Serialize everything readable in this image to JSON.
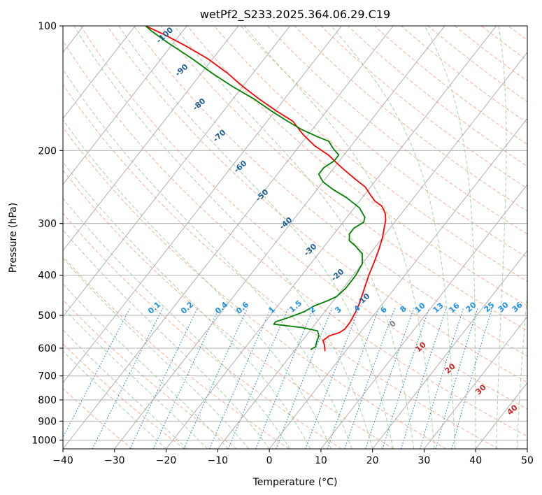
{
  "chart_data": {
    "type": "line",
    "title": "wetPf2_S233.2025.364.06.29.C19",
    "xlabel": "Temperature (°C)",
    "ylabel": "Pressure (hPa)",
    "xlim": [
      -40,
      50
    ],
    "ylim": [
      1050,
      100
    ],
    "y_scale": "log",
    "grid": true,
    "x_ticks": [
      -40,
      -30,
      -20,
      -10,
      0,
      10,
      20,
      30,
      40,
      50
    ],
    "y_ticks": [
      100,
      200,
      300,
      400,
      500,
      600,
      700,
      800,
      900,
      1000
    ],
    "series": [
      {
        "role": "temperature",
        "color": "#ff0000",
        "points": [
          [
            -4,
            610
          ],
          [
            -5,
            590
          ],
          [
            -6,
            575
          ],
          [
            -5.5,
            560
          ],
          [
            -4,
            550
          ],
          [
            -3.5,
            540
          ],
          [
            -3.5,
            520
          ],
          [
            -4,
            490
          ],
          [
            -4.5,
            470
          ],
          [
            -5.5,
            440
          ],
          [
            -7,
            400
          ],
          [
            -8,
            370
          ],
          [
            -9,
            345
          ],
          [
            -10,
            325
          ],
          [
            -11,
            310
          ],
          [
            -12,
            295
          ],
          [
            -13,
            285
          ],
          [
            -14,
            278
          ],
          [
            -15,
            272
          ],
          [
            -17,
            265
          ],
          [
            -19,
            255
          ],
          [
            -21,
            245
          ],
          [
            -24,
            235
          ],
          [
            -27,
            225
          ],
          [
            -30,
            215
          ],
          [
            -33,
            205
          ],
          [
            -37,
            195
          ],
          [
            -41,
            183
          ],
          [
            -45,
            170
          ],
          [
            -50,
            160
          ],
          [
            -55,
            150
          ],
          [
            -60,
            140
          ],
          [
            -65,
            130
          ],
          [
            -71,
            120
          ],
          [
            -77,
            112
          ],
          [
            -83,
            105
          ],
          [
            -88,
            100
          ]
        ]
      },
      {
        "role": "dewpoint",
        "color": "#008000",
        "points": [
          [
            -7,
            605
          ],
          [
            -6.5,
            595
          ],
          [
            -7,
            580
          ],
          [
            -7.5,
            560
          ],
          [
            -8.5,
            545
          ],
          [
            -12,
            535
          ],
          [
            -18,
            525
          ],
          [
            -18,
            518
          ],
          [
            -16,
            505
          ],
          [
            -14,
            490
          ],
          [
            -13,
            475
          ],
          [
            -11,
            460
          ],
          [
            -10,
            450
          ],
          [
            -9.5,
            430
          ],
          [
            -9.5,
            400
          ],
          [
            -10,
            375
          ],
          [
            -11.5,
            355
          ],
          [
            -14,
            340
          ],
          [
            -16,
            330
          ],
          [
            -17,
            318
          ],
          [
            -17,
            308
          ],
          [
            -16,
            298
          ],
          [
            -16.5,
            290
          ],
          [
            -19,
            275
          ],
          [
            -23,
            260
          ],
          [
            -27,
            248
          ],
          [
            -30,
            238
          ],
          [
            -32,
            228
          ],
          [
            -32,
            220
          ],
          [
            -31,
            212
          ],
          [
            -31,
            205
          ],
          [
            -33,
            198
          ],
          [
            -35,
            190
          ],
          [
            -38,
            185
          ],
          [
            -42,
            178
          ],
          [
            -46,
            170
          ],
          [
            -51,
            160
          ],
          [
            -56,
            150
          ],
          [
            -62,
            140
          ],
          [
            -68,
            130
          ],
          [
            -74,
            120
          ],
          [
            -81,
            110
          ],
          [
            -86,
            103
          ],
          [
            -88,
            100
          ]
        ]
      }
    ],
    "dry_adiabat_labels": [
      "-100",
      "-90",
      "-80",
      "-70",
      "-60",
      "-50",
      "-40",
      "-30",
      "-20",
      "-10"
    ],
    "moist_adiabat_labels": [
      "0",
      "10",
      "20",
      "30",
      "40"
    ],
    "mixing_ratio_labels": [
      "0.1",
      "0.2",
      "0.4",
      "0.6",
      "1",
      "1.5",
      "2",
      "3",
      "4",
      "6",
      "8",
      "10",
      "13",
      "16",
      "20",
      "25",
      "30",
      "36"
    ],
    "mixing_ratio_values": [
      0.1,
      0.2,
      0.4,
      0.6,
      1,
      1.5,
      2,
      3,
      4,
      6,
      8,
      10,
      13,
      16,
      20,
      25,
      30,
      36
    ],
    "colors": {
      "isotherm": "#a8a8a8",
      "isobar": "#a8a8a8",
      "dry_adiabat": "#f4a582",
      "moist_adiabat": "#8fc98f",
      "mixing_ratio": "#1f7fd6",
      "dry_label": "#1f5f99",
      "moist_label": "#cc2222",
      "mixing_label": "#1f8fe6",
      "zero_label": "#808080"
    }
  }
}
